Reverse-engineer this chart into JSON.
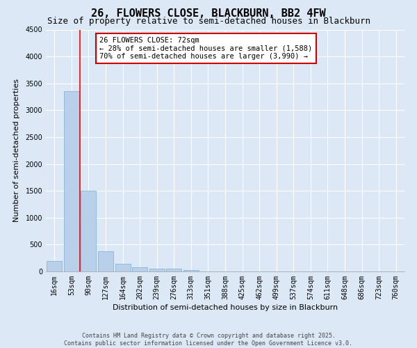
{
  "title": "26, FLOWERS CLOSE, BLACKBURN, BB2 4FW",
  "subtitle": "Size of property relative to semi-detached houses in Blackburn",
  "xlabel": "Distribution of semi-detached houses by size in Blackburn",
  "ylabel": "Number of semi-detached properties",
  "categories": [
    "16sqm",
    "53sqm",
    "90sqm",
    "127sqm",
    "164sqm",
    "202sqm",
    "239sqm",
    "276sqm",
    "313sqm",
    "351sqm",
    "388sqm",
    "425sqm",
    "462sqm",
    "499sqm",
    "537sqm",
    "574sqm",
    "611sqm",
    "648sqm",
    "686sqm",
    "723sqm",
    "760sqm"
  ],
  "values": [
    190,
    3360,
    1500,
    370,
    140,
    75,
    55,
    50,
    30,
    0,
    0,
    0,
    0,
    0,
    0,
    0,
    0,
    0,
    0,
    0,
    0
  ],
  "bar_color": "#b8d0ea",
  "bar_edge_color": "#7aadd4",
  "background_color": "#dce8f5",
  "grid_color": "#ffffff",
  "annotation_title": "26 FLOWERS CLOSE: 72sqm",
  "annotation_line1": "← 28% of semi-detached houses are smaller (1,588)",
  "annotation_line2": "70% of semi-detached houses are larger (3,990) →",
  "ylim": [
    0,
    4500
  ],
  "yticks": [
    0,
    500,
    1000,
    1500,
    2000,
    2500,
    3000,
    3500,
    4000,
    4500
  ],
  "footer_line1": "Contains HM Land Registry data © Crown copyright and database right 2025.",
  "footer_line2": "Contains public sector information licensed under the Open Government Licence v3.0.",
  "title_fontsize": 11,
  "subtitle_fontsize": 9,
  "axis_label_fontsize": 8,
  "tick_fontsize": 7,
  "annotation_fontsize": 7.5,
  "footer_fontsize": 6,
  "annotation_box_color": "#ffffff",
  "annotation_box_edge": "#cc0000",
  "red_line_bin": 1.5
}
